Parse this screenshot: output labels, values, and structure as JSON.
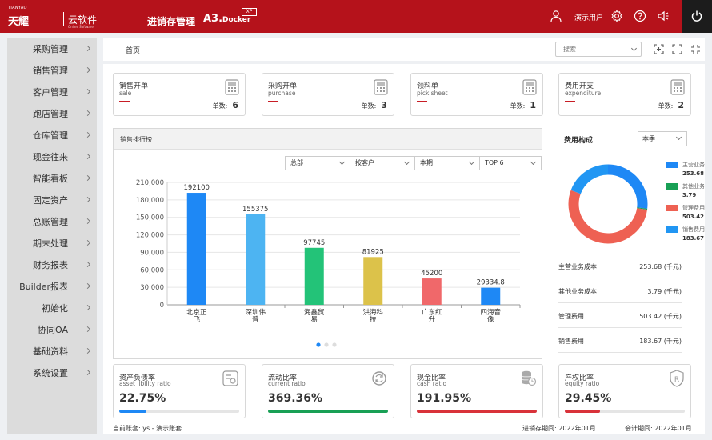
{
  "header": {
    "logo_en": "TIANYAO",
    "logo_cn": "天耀",
    "logo_cloud": "云软件",
    "logo_cloud_sub": "Online Software",
    "system_name": "进销存管理",
    "app_name": "A3.",
    "app_name_suffix": "Docker",
    "edition_badge": "XP",
    "user_name": "演示用户",
    "icons": [
      "user-icon",
      "gear-icon",
      "help-icon",
      "notice-icon",
      "power-icon"
    ]
  },
  "sidebar": {
    "items": [
      {
        "label": "采购管理"
      },
      {
        "label": "销售管理"
      },
      {
        "label": "客户管理"
      },
      {
        "label": "跑店管理"
      },
      {
        "label": "仓库管理"
      },
      {
        "label": "现金往来"
      },
      {
        "label": "智能看板"
      },
      {
        "label": "固定资产"
      },
      {
        "label": "总账管理"
      },
      {
        "label": "期末处理"
      },
      {
        "label": "财务报表"
      },
      {
        "label": "Builder报表"
      },
      {
        "label": "初始化"
      },
      {
        "label": "协同OA"
      },
      {
        "label": "基础资料"
      },
      {
        "label": "系统设置"
      }
    ]
  },
  "toolbar": {
    "breadcrumb": "首页",
    "search_placeholder": "搜索"
  },
  "doc_cards": [
    {
      "title": "销售开单",
      "subtitle": "sale",
      "count_label": "单数:",
      "count": "6"
    },
    {
      "title": "采购开单",
      "subtitle": "purchase",
      "count_label": "单数:",
      "count": "3"
    },
    {
      "title": "领料单",
      "subtitle": "pick sheet",
      "count_label": "单数:",
      "count": "1"
    },
    {
      "title": "费用开支",
      "subtitle": "expenditure",
      "count_label": "单数:",
      "count": "2"
    }
  ],
  "sales_ranking": {
    "title": "销售排行榜",
    "filters": [
      "总部",
      "按客户",
      "本期",
      "TOP 6"
    ]
  },
  "chart_data": [
    {
      "type": "bar",
      "categories": [
        "北京正飞",
        "深圳伟普",
        "海鑫贸易",
        "洪海科技",
        "广东红升",
        "四海音像"
      ],
      "category_lines": [
        [
          "北京正",
          "飞"
        ],
        [
          "深圳伟",
          "普"
        ],
        [
          "海鑫贸",
          "易"
        ],
        [
          "洪海科",
          "技"
        ],
        [
          "广东红",
          "升"
        ],
        [
          "四海音",
          "像"
        ]
      ],
      "values": [
        192100,
        155375,
        97745,
        81925,
        45200,
        29334.8
      ],
      "value_labels": [
        "192100",
        "155375",
        "97745",
        "81925",
        "45200",
        "29334.8"
      ],
      "colors": [
        "#1e88f5",
        "#4db4f2",
        "#23c378",
        "#dcc24a",
        "#f0686a",
        "#1e88f5"
      ],
      "ylim": [
        0,
        210000
      ],
      "yticks": [
        "0",
        "30,000",
        "60,000",
        "90,000",
        "120,000",
        "150,000",
        "180,000",
        "210,000"
      ],
      "grid": true
    },
    {
      "type": "pie",
      "title": "费用构成",
      "period": "本季",
      "unit": "(千元)",
      "slices": [
        {
          "name": "主营业务成本",
          "legend": "主营业务",
          "value": 253.68,
          "value_text": "253.68",
          "color": "#1e88f5"
        },
        {
          "name": "其他业务成本",
          "legend": "其他业务",
          "value": 3.79,
          "value_text": "3.79",
          "color": "#18a055"
        },
        {
          "name": "管理费用",
          "legend": "管理费用",
          "value": 503.42,
          "value_text": "503.42",
          "color": "#ee6153"
        },
        {
          "name": "销售费用",
          "legend": "销售费用",
          "value": 183.67,
          "value_text": "183.67",
          "color": "#2196f3"
        }
      ]
    }
  ],
  "ratio_cards": [
    {
      "title": "资产负债率",
      "subtitle": "asset libility ratio",
      "value": "22.75%",
      "fraction": 0.2275,
      "color": "#1e88f5"
    },
    {
      "title": "流动比率",
      "subtitle": "current ratio",
      "value": "369.36%",
      "fraction": 1.0,
      "color": "#18a055"
    },
    {
      "title": "现金比率",
      "subtitle": "cash ratio",
      "value": "191.95%",
      "fraction": 1.0,
      "color": "#d9323a"
    },
    {
      "title": "产权比率",
      "subtitle": "equity ratio",
      "value": "29.45%",
      "fraction": 0.2945,
      "color": "#d9323a"
    }
  ],
  "statusbar": {
    "account": "当前账套: ys - 演示账套",
    "psi_period": "进销存期间: 2022年01月",
    "accounting_period": "会计期间: 2022年01月"
  }
}
